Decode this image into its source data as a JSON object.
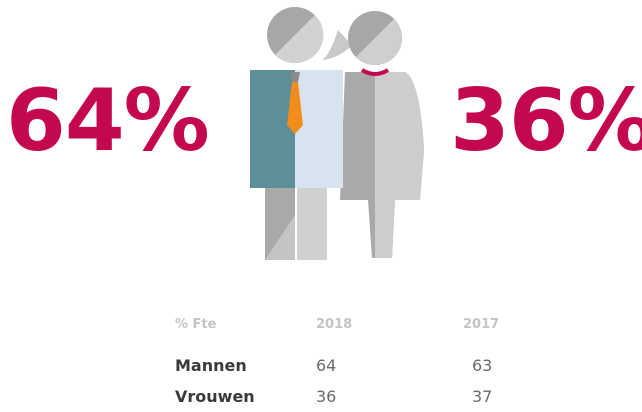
{
  "stats": {
    "left": "64%",
    "right": "36%"
  },
  "table": {
    "header": [
      "% Fte",
      "2018",
      "2017"
    ],
    "rows": [
      [
        "Mannen",
        "64",
        "63"
      ],
      [
        "Vrouwen",
        "36",
        "37"
      ]
    ]
  }
}
